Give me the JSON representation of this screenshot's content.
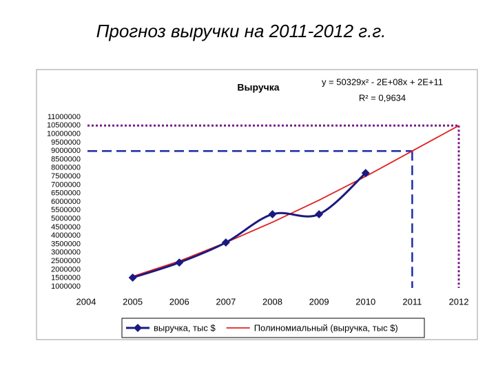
{
  "slide_title": "Прогноз выручки на 2011-2012 г.г.",
  "chart_data": {
    "type": "line",
    "title": "Выручка",
    "equation": "y = 50329x² - 2E+08x + 2E+11",
    "r_squared": "R² = 0,9634",
    "xlim": [
      2004,
      2012
    ],
    "xticks": [
      2004,
      2005,
      2006,
      2007,
      2008,
      2009,
      2010,
      2011,
      2012
    ],
    "ylim": [
      1000000,
      11000000
    ],
    "yticks": [
      1000000,
      1500000,
      2000000,
      2500000,
      3000000,
      3500000,
      4000000,
      4500000,
      5000000,
      5500000,
      6000000,
      6500000,
      7000000,
      7500000,
      8000000,
      8500000,
      9000000,
      9500000,
      10000000,
      10500000,
      11000000
    ],
    "series": [
      {
        "name": "выручка, тыс $",
        "color": "#1a1a80",
        "marker": "diamond",
        "smooth": true,
        "x": [
          2005,
          2006,
          2007,
          2008,
          2009,
          2010
        ],
        "values": [
          1530000,
          2420000,
          3600000,
          5270000,
          5270000,
          7700000
        ]
      },
      {
        "name": "Полиномиальный (выручка, тыс $)",
        "color": "#e02020",
        "marker": "none",
        "smooth": false,
        "x": [
          2005,
          2006,
          2007,
          2008,
          2009,
          2010,
          2011,
          2012
        ],
        "values": [
          1600000,
          2500000,
          3600000,
          4800000,
          6100000,
          7500000,
          9000000,
          10500000
        ]
      }
    ],
    "forecast_lines": [
      {
        "x": 2011,
        "y": 9000000,
        "color": "#1a2aa8",
        "style": "dashed"
      },
      {
        "x": 2012,
        "y": 10500000,
        "color": "#7a1a8a",
        "style": "dotted"
      }
    ],
    "legend": "bottom"
  }
}
